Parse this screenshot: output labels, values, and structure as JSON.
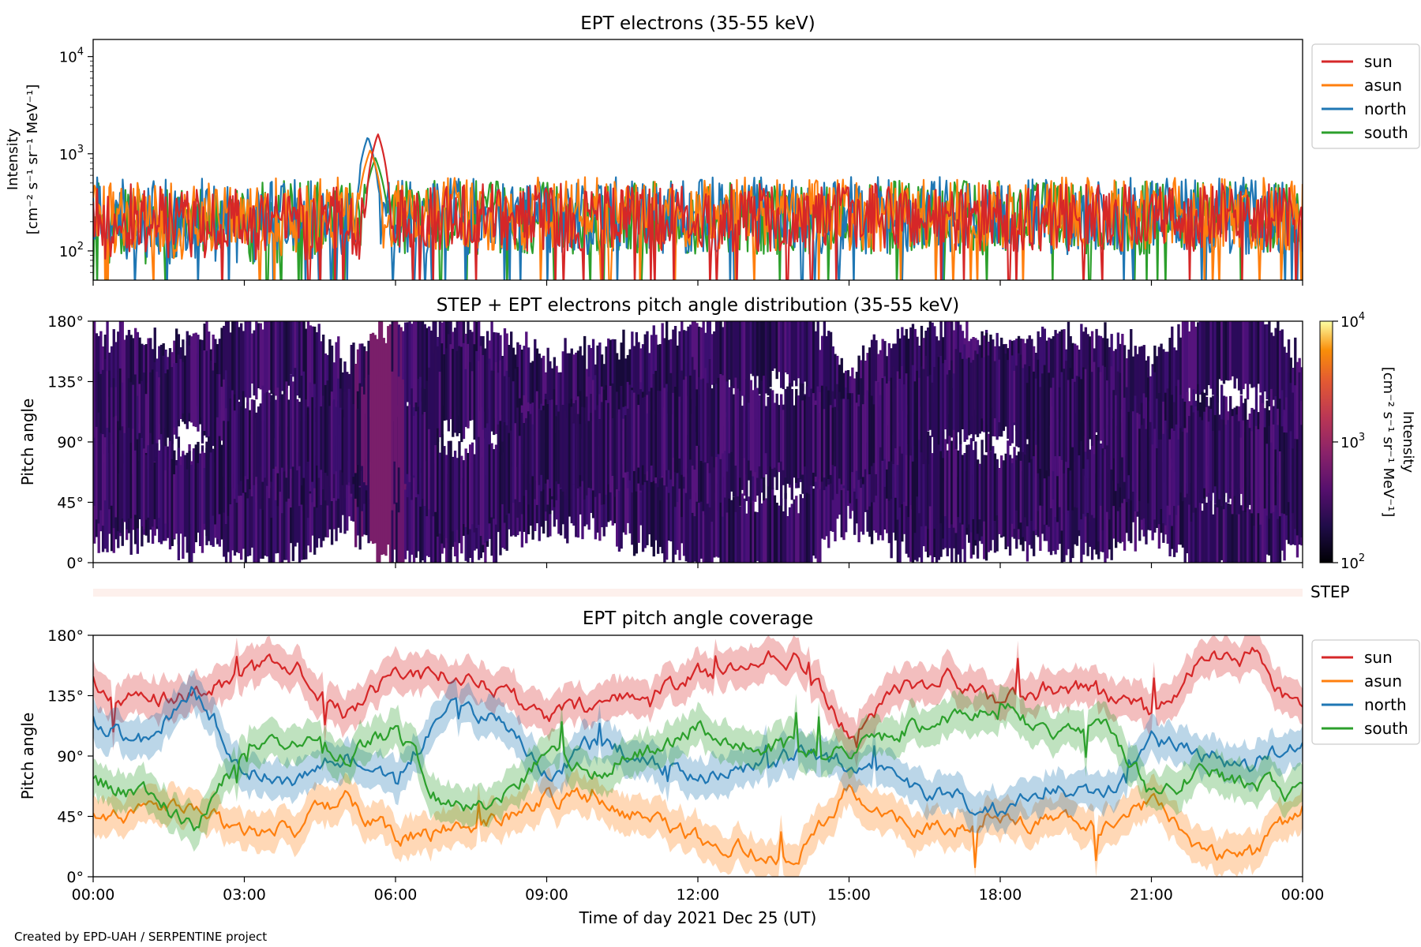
{
  "figure": {
    "credit": "Created by EPD-UAH / SERPENTINE project",
    "xlabel": "Time of day 2021 Dec 25 (UT)",
    "x_ticks": [
      "00:00",
      "03:00",
      "06:00",
      "09:00",
      "12:00",
      "15:00",
      "18:00",
      "21:00",
      "00:00"
    ]
  },
  "series_colors": {
    "sun": "#d62728",
    "asun": "#ff7f0e",
    "north": "#1f77b4",
    "south": "#2ca02c"
  },
  "chart_data": [
    {
      "type": "line",
      "title": "EPT electrons (35-55 keV)",
      "ylabel_line1": "Intensity",
      "ylabel_line2": "[cm⁻² s⁻¹ sr⁻¹ MeV⁻¹]",
      "yscale": "log",
      "ylim": [
        50,
        15000
      ],
      "y_ticks": [
        "10²",
        "10³",
        "10⁴"
      ],
      "xlim_hours": [
        0,
        24
      ],
      "legend_position": "outside-right-top",
      "legend": [
        "sun",
        "asun",
        "north",
        "south"
      ],
      "series": [
        {
          "name": "sun",
          "baseline": 220,
          "spread": 0.35,
          "peak": {
            "t": 5.65,
            "value": 1600
          }
        },
        {
          "name": "asun",
          "baseline": 240,
          "spread": 0.38,
          "peak": {
            "t": 5.5,
            "value": 1100
          }
        },
        {
          "name": "north",
          "baseline": 230,
          "spread": 0.4,
          "peak": {
            "t": 5.45,
            "value": 1500
          }
        },
        {
          "name": "south",
          "baseline": 220,
          "spread": 0.38,
          "peak": {
            "t": 5.6,
            "value": 900
          }
        }
      ]
    },
    {
      "type": "heatmap",
      "title": "STEP + EPT electrons pitch angle distribution (35-55 keV)",
      "ylabel": "Pitch angle",
      "ylim_deg": [
        0,
        180
      ],
      "y_ticks": [
        "0°",
        "45°",
        "90°",
        "135°",
        "180°"
      ],
      "colorbar": {
        "scale": "log",
        "range": [
          100,
          10000
        ],
        "ticks": [
          "10²",
          "10³",
          "10⁴"
        ],
        "label_line1": "Intensity",
        "label_line2": "[cm⁻² s⁻¹ sr⁻¹ MeV⁻¹]",
        "colormap": "inferno"
      },
      "typical_intensity": 250,
      "peak_intensity": {
        "t": 5.7,
        "value": 1500
      }
    },
    {
      "type": "bar",
      "label": "STEP",
      "color": "#fdf0ec"
    },
    {
      "type": "line",
      "title": "EPT pitch angle coverage",
      "ylabel": "Pitch angle",
      "ylim_deg": [
        0,
        180
      ],
      "y_ticks": [
        "0°",
        "45°",
        "90°",
        "135°",
        "180°"
      ],
      "legend_position": "outside-right-top",
      "legend": [
        "sun",
        "asun",
        "north",
        "south"
      ],
      "series": [
        {
          "name": "sun",
          "knots_hours": [
            0,
            1,
            2,
            3,
            4,
            5,
            6,
            7,
            8,
            9,
            10,
            11,
            12,
            13,
            14,
            15,
            16,
            17,
            18,
            19,
            20,
            21,
            22,
            23,
            24
          ],
          "knots_deg": [
            145,
            130,
            135,
            150,
            160,
            120,
            150,
            150,
            140,
            120,
            130,
            135,
            150,
            160,
            165,
            110,
            140,
            150,
            130,
            140,
            140,
            120,
            160,
            165,
            120
          ]
        },
        {
          "name": "asun",
          "knots_hours": [
            0,
            1,
            2,
            3,
            4,
            5,
            6,
            7,
            8,
            9,
            10,
            11,
            12,
            13,
            14,
            15,
            16,
            17,
            18,
            19,
            20,
            21,
            22,
            23,
            24
          ],
          "knots_deg": [
            45,
            50,
            55,
            30,
            35,
            60,
            30,
            35,
            40,
            60,
            55,
            45,
            30,
            20,
            15,
            65,
            40,
            35,
            45,
            40,
            35,
            55,
            20,
            15,
            50
          ]
        },
        {
          "name": "north",
          "knots_hours": [
            0,
            1,
            2,
            3,
            4,
            5,
            6,
            7,
            8,
            9,
            10,
            11,
            12,
            13,
            14,
            15,
            16,
            17,
            18,
            19,
            20,
            21,
            22,
            23,
            24
          ],
          "knots_deg": [
            115,
            100,
            140,
            80,
            70,
            90,
            70,
            130,
            120,
            80,
            100,
            90,
            70,
            80,
            90,
            85,
            70,
            60,
            50,
            70,
            60,
            100,
            90,
            85,
            100
          ]
        },
        {
          "name": "south",
          "knots_hours": [
            0,
            1,
            2,
            3,
            4,
            5,
            6,
            7,
            8,
            9,
            10,
            11,
            12,
            13,
            14,
            15,
            16,
            17,
            18,
            19,
            20,
            21,
            22,
            23,
            24
          ],
          "knots_deg": [
            70,
            60,
            40,
            90,
            100,
            90,
            110,
            50,
            60,
            90,
            80,
            95,
            110,
            100,
            95,
            90,
            110,
            120,
            130,
            100,
            120,
            60,
            80,
            70,
            60
          ]
        }
      ]
    }
  ]
}
